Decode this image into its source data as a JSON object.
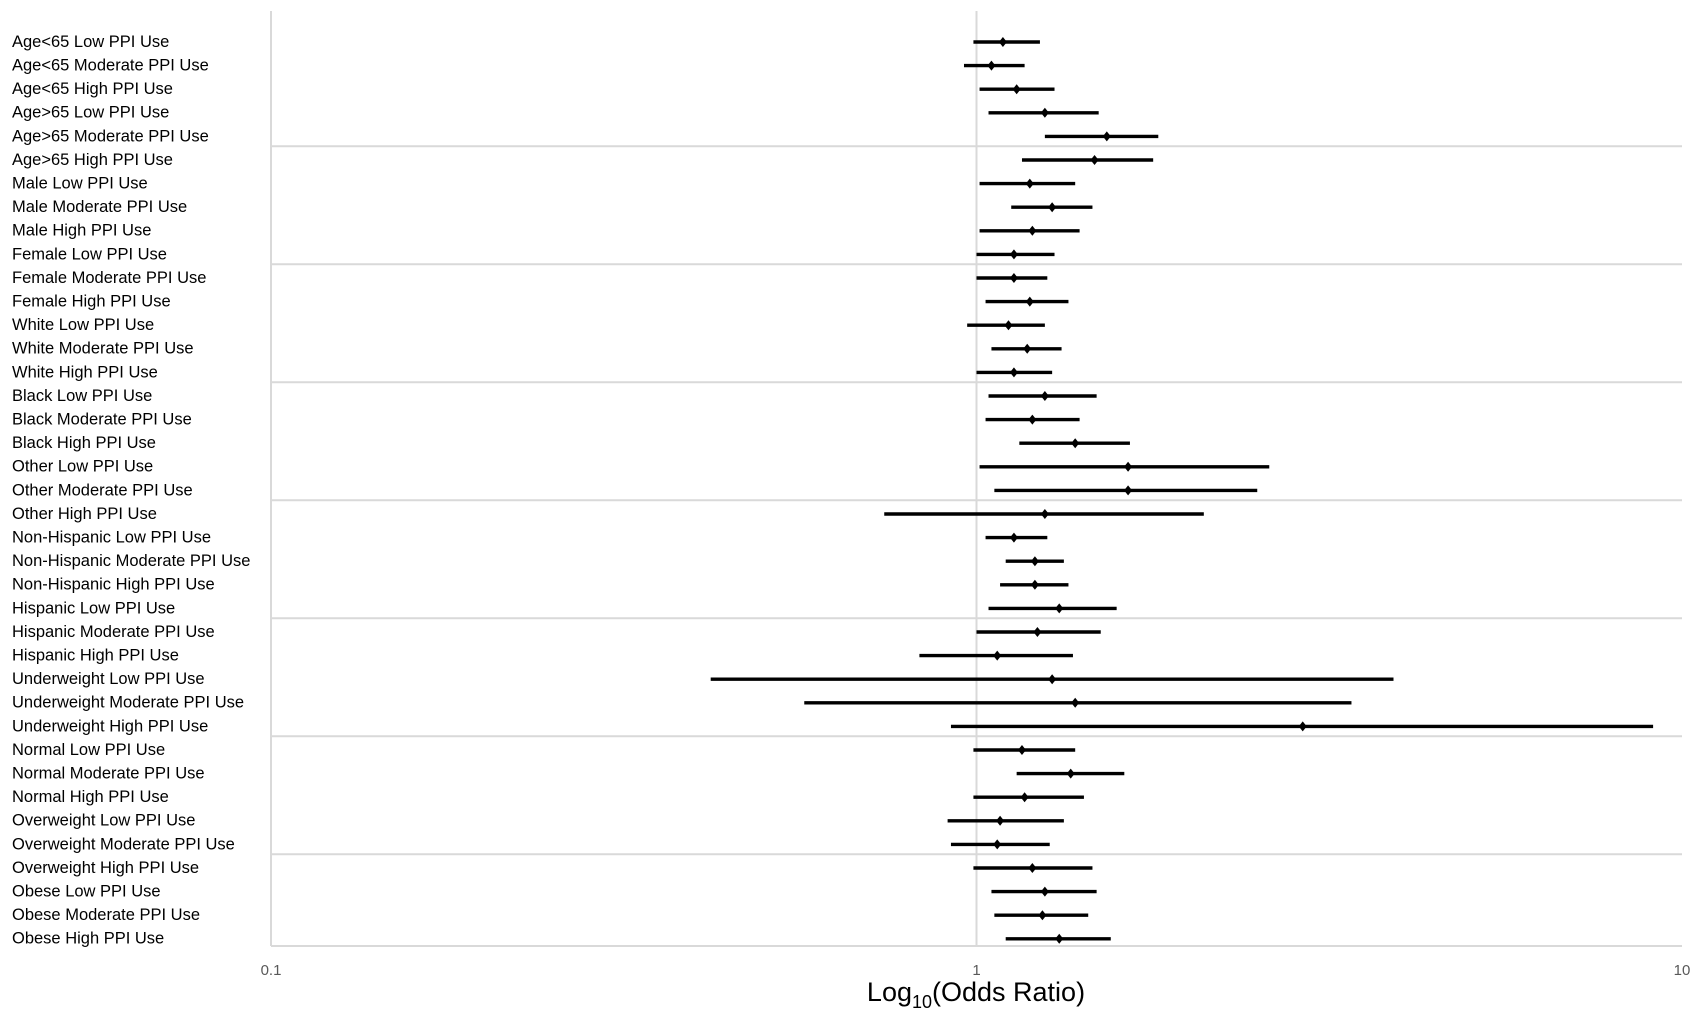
{
  "chart_data": {
    "type": "forest",
    "xlabel_prefix": "Log",
    "xlabel_subscript": "10",
    "xlabel_suffix": "(Odds Ratio)",
    "x_scale": "log",
    "xlim": [
      0.1,
      10
    ],
    "x_ticks": [
      {
        "value": 0.1,
        "label": "0.1"
      },
      {
        "value": 1,
        "label": "1"
      },
      {
        "value": 10,
        "label": "10"
      }
    ],
    "reference_line": 1,
    "grid": "horizontal bands every 5 rows",
    "colors": {
      "marker": "#000000",
      "grid": "#d9d9d9",
      "ref_line": "#d9d9d9",
      "tick_text": "#595959"
    },
    "rows": [
      {
        "label": "Age<65 Low PPI Use",
        "or": 1.09,
        "lo": 0.99,
        "hi": 1.23
      },
      {
        "label": "Age<65 Moderate PPI Use",
        "or": 1.05,
        "lo": 0.96,
        "hi": 1.17
      },
      {
        "label": "Age<65 High PPI Use",
        "or": 1.14,
        "lo": 1.01,
        "hi": 1.29
      },
      {
        "label": "Age>65 Low PPI Use",
        "or": 1.25,
        "lo": 1.04,
        "hi": 1.49
      },
      {
        "label": "Age>65 Moderate PPI Use",
        "or": 1.53,
        "lo": 1.25,
        "hi": 1.81
      },
      {
        "label": "Age>65 High PPI Use",
        "or": 1.47,
        "lo": 1.16,
        "hi": 1.78
      },
      {
        "label": "Male Low PPI Use",
        "or": 1.19,
        "lo": 1.01,
        "hi": 1.38
      },
      {
        "label": "Male Moderate PPI Use",
        "or": 1.28,
        "lo": 1.12,
        "hi": 1.46
      },
      {
        "label": "Male High PPI Use",
        "or": 1.2,
        "lo": 1.01,
        "hi": 1.4
      },
      {
        "label": "Female Low PPI Use",
        "or": 1.13,
        "lo": 1.0,
        "hi": 1.29
      },
      {
        "label": "Female Moderate PPI Use",
        "or": 1.13,
        "lo": 1.0,
        "hi": 1.26
      },
      {
        "label": "Female High PPI Use",
        "or": 1.19,
        "lo": 1.03,
        "hi": 1.35
      },
      {
        "label": "White Low PPI Use",
        "or": 1.11,
        "lo": 0.97,
        "hi": 1.25
      },
      {
        "label": "White Moderate PPI Use",
        "or": 1.18,
        "lo": 1.05,
        "hi": 1.32
      },
      {
        "label": "White High PPI Use",
        "or": 1.13,
        "lo": 1.0,
        "hi": 1.28
      },
      {
        "label": "Black Low PPI Use",
        "or": 1.25,
        "lo": 1.04,
        "hi": 1.48
      },
      {
        "label": "Black Moderate PPI Use",
        "or": 1.2,
        "lo": 1.03,
        "hi": 1.4
      },
      {
        "label": "Black High PPI Use",
        "or": 1.38,
        "lo": 1.15,
        "hi": 1.65
      },
      {
        "label": "Other Low PPI Use",
        "or": 1.64,
        "lo": 1.01,
        "hi": 2.6
      },
      {
        "label": "Other Moderate PPI Use",
        "or": 1.64,
        "lo": 1.06,
        "hi": 2.5
      },
      {
        "label": "Other High PPI Use",
        "or": 1.25,
        "lo": 0.74,
        "hi": 2.1
      },
      {
        "label": "Non-Hispanic Low PPI Use",
        "or": 1.13,
        "lo": 1.03,
        "hi": 1.26
      },
      {
        "label": "Non-Hispanic Moderate PPI Use",
        "or": 1.21,
        "lo": 1.1,
        "hi": 1.33
      },
      {
        "label": "Non-Hispanic High PPI Use",
        "or": 1.21,
        "lo": 1.08,
        "hi": 1.35
      },
      {
        "label": "Hispanic Low PPI Use",
        "or": 1.31,
        "lo": 1.04,
        "hi": 1.58
      },
      {
        "label": "Hispanic Moderate PPI Use",
        "or": 1.22,
        "lo": 1.0,
        "hi": 1.5
      },
      {
        "label": "Hispanic High PPI Use",
        "or": 1.07,
        "lo": 0.83,
        "hi": 1.37
      },
      {
        "label": "Underweight Low  PPI Use",
        "or": 1.28,
        "lo": 0.42,
        "hi": 3.9
      },
      {
        "label": "Underweight Moderate PPI Use",
        "or": 1.38,
        "lo": 0.57,
        "hi": 3.4
      },
      {
        "label": "Underweight High PPI Use",
        "or": 2.9,
        "lo": 0.92,
        "hi": 9.1
      },
      {
        "label": "Normal Low PPI Use",
        "or": 1.16,
        "lo": 0.99,
        "hi": 1.38
      },
      {
        "label": "Normal Moderate PPI Use",
        "or": 1.36,
        "lo": 1.14,
        "hi": 1.62
      },
      {
        "label": "Normal High PPI Use",
        "or": 1.17,
        "lo": 0.99,
        "hi": 1.42
      },
      {
        "label": "Overweight Low PPI Use",
        "or": 1.08,
        "lo": 0.91,
        "hi": 1.33
      },
      {
        "label": "Overweight Moderate PPI Use",
        "or": 1.07,
        "lo": 0.92,
        "hi": 1.27
      },
      {
        "label": "Overweight High PPI Use",
        "or": 1.2,
        "lo": 0.99,
        "hi": 1.46
      },
      {
        "label": "Obese Low PPI Use",
        "or": 1.25,
        "lo": 1.05,
        "hi": 1.48
      },
      {
        "label": "Obese Moderate PPI Use",
        "or": 1.24,
        "lo": 1.06,
        "hi": 1.44
      },
      {
        "label": "Obese High PPI Use",
        "or": 1.31,
        "lo": 1.1,
        "hi": 1.55
      }
    ]
  }
}
